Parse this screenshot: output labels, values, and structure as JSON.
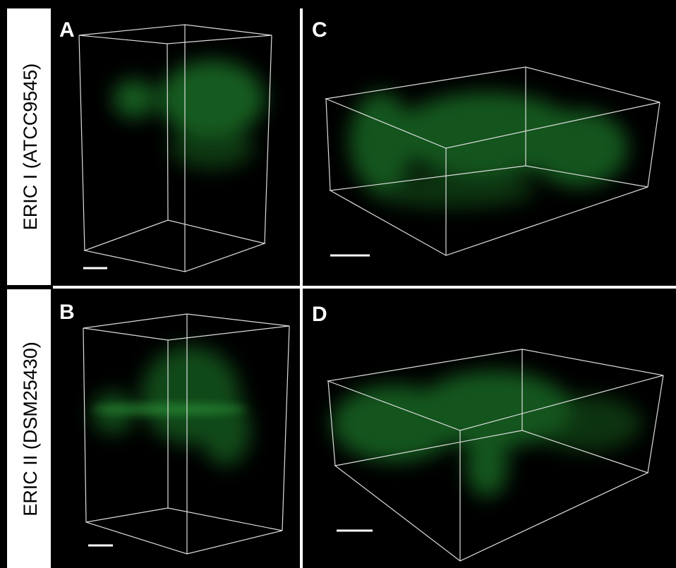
{
  "row_labels": [
    "ERIC I (ATCC9545)",
    "ERIC II (DSM25430)"
  ],
  "panels": [
    {
      "letter": "A"
    },
    {
      "letter": "C"
    },
    {
      "letter": "B"
    },
    {
      "letter": "D"
    }
  ]
}
